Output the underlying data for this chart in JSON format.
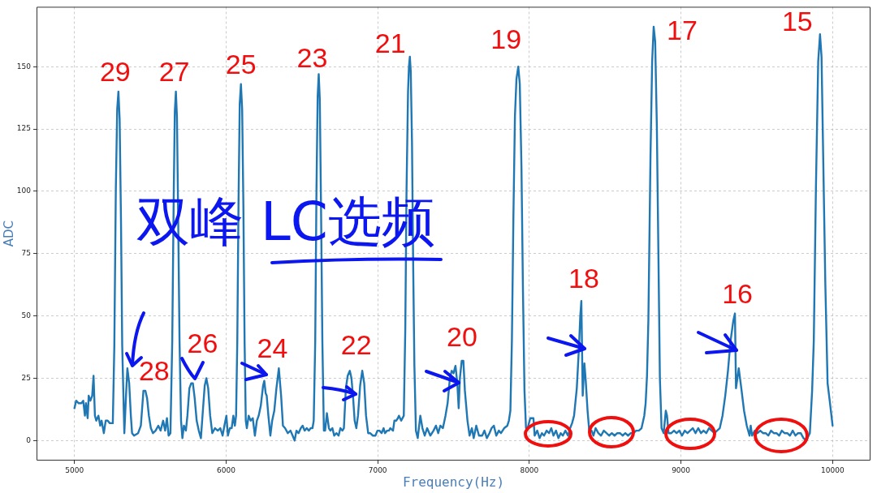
{
  "chart_data": {
    "type": "line",
    "xlabel": "Frequency(Hz)",
    "ylabel": "ADC",
    "color": "#1f77b4",
    "marker": "none",
    "grid": true,
    "xlim": [
      4750,
      10250
    ],
    "xticks": [
      5000,
      6000,
      7000,
      8000,
      9000,
      10000
    ],
    "ylim": [
      -8,
      174
    ],
    "yticks": [
      0,
      25,
      50,
      75,
      100,
      125,
      150
    ],
    "x": [
      5000,
      5011,
      5028,
      5046,
      5058,
      5069,
      5076,
      5087,
      5094,
      5105,
      5117,
      5126,
      5135,
      5144,
      5158,
      5170,
      5179,
      5194,
      5206,
      5219,
      5233,
      5247,
      5253,
      5263,
      5273,
      5282,
      5290,
      5298,
      5307,
      5315,
      5329,
      5340,
      5349,
      5361,
      5372,
      5380,
      5393,
      5420,
      5438,
      5455,
      5468,
      5479,
      5491,
      5504,
      5518,
      5535,
      5553,
      5568,
      5585,
      5598,
      5610,
      5621,
      5633,
      5645,
      5655,
      5662,
      5669,
      5676,
      5684,
      5693,
      5703,
      5712,
      5722,
      5735,
      5745,
      5758,
      5770,
      5781,
      5793,
      5806,
      5820,
      5834,
      5847,
      5859,
      5870,
      5882,
      5895,
      5909,
      5927,
      5945,
      5962,
      5977,
      5989,
      6002,
      6012,
      6025,
      6037,
      6048,
      6058,
      6066,
      6074,
      6082,
      6090,
      6098,
      6106,
      6114,
      6122,
      6130,
      6137,
      6149,
      6162,
      6176,
      6190,
      6203,
      6215,
      6229,
      6244,
      6252,
      6261,
      6268,
      6279,
      6292,
      6304,
      6318,
      6332,
      6348,
      6363,
      6375,
      6389,
      6407,
      6425,
      6439,
      6452,
      6464,
      6478,
      6493,
      6505,
      6518,
      6532,
      6546,
      6558,
      6570,
      6578,
      6588,
      6596,
      6604,
      6611,
      6618,
      6626,
      6635,
      6645,
      6653,
      6665,
      6678,
      6688,
      6701,
      6713,
      6727,
      6742,
      6754,
      6767,
      6777,
      6790,
      6802,
      6816,
      6827,
      6838,
      6848,
      6859,
      6870,
      6884,
      6898,
      6911,
      6923,
      6937,
      6950,
      6968,
      6985,
      6998,
      7012,
      7026,
      7039,
      7048,
      7062,
      7074,
      7083,
      7101,
      7110,
      7122,
      7133,
      7140,
      7155,
      7172,
      7182,
      7190,
      7200,
      7206,
      7212,
      7218,
      7226,
      7234,
      7242,
      7252,
      7264,
      7281,
      7295,
      7310,
      7326,
      7347,
      7368,
      7384,
      7399,
      7413,
      7430,
      7447,
      7461,
      7476,
      7488,
      7500,
      7513,
      7525,
      7534,
      7542,
      7554,
      7565,
      7575,
      7592,
      7606,
      7621,
      7633,
      7650,
      7668,
      7689,
      7704,
      7720,
      7737,
      7751,
      7766,
      7782,
      7799,
      7813,
      7834,
      7855,
      7865,
      7875,
      7885,
      7895,
      7905,
      7915,
      7927,
      7937,
      7948,
      7958,
      7968,
      7978,
      7989,
      8006,
      8027,
      8035,
      8052,
      8068,
      8083,
      8097,
      8114,
      8130,
      8145,
      8159,
      8176,
      8192,
      8207,
      8221,
      8238,
      8255,
      8269,
      8282,
      8295,
      8313,
      8327,
      8336,
      8343,
      8352,
      8363,
      8372,
      8384,
      8395,
      8411,
      8423,
      8437,
      8455,
      8473,
      8491,
      8509,
      8526,
      8544,
      8562,
      8580,
      8598,
      8615,
      8633,
      8651,
      8669,
      8687,
      8704,
      8722,
      8740,
      8758,
      8767,
      8776,
      8785,
      8799,
      8810,
      8820,
      8830,
      8841,
      8851,
      8861,
      8872,
      8886,
      8900,
      8908,
      8918,
      8936,
      8954,
      8971,
      8989,
      9007,
      9025,
      9043,
      9060,
      9078,
      9096,
      9114,
      9132,
      9149,
      9167,
      9185,
      9203,
      9221,
      9238,
      9256,
      9274,
      9292,
      9310,
      9327,
      9345,
      9356,
      9363,
      9381,
      9398,
      9416,
      9434,
      9452,
      9460,
      9469,
      9487,
      9505,
      9523,
      9541,
      9559,
      9576,
      9594,
      9612,
      9630,
      9648,
      9665,
      9683,
      9701,
      9719,
      9737,
      9755,
      9772,
      9790,
      9808,
      9826,
      9850,
      9865,
      9876,
      9890,
      9905,
      9917,
      9927,
      9938,
      9952,
      9967,
      9983,
      10000
    ],
    "values": [
      13,
      16,
      15,
      15,
      16,
      10,
      15,
      9,
      18,
      16,
      18,
      26,
      10,
      8,
      10,
      6,
      8,
      3,
      8,
      8,
      7,
      7,
      7,
      38,
      101,
      133,
      140,
      129,
      88,
      38,
      3,
      18,
      29,
      23,
      10,
      3,
      2,
      3,
      6,
      20,
      20,
      17,
      10,
      5,
      3,
      4,
      6,
      4,
      8,
      4,
      9,
      2,
      3,
      40,
      100,
      132,
      140,
      130,
      90,
      40,
      8,
      1,
      6,
      4,
      10,
      21,
      23,
      23,
      17,
      8,
      4,
      1,
      12,
      22,
      25,
      21,
      10,
      3,
      5,
      4,
      5,
      2,
      6,
      10,
      2,
      5,
      5,
      10,
      6,
      10,
      40,
      95,
      135,
      143,
      133,
      95,
      40,
      8,
      5,
      10,
      8,
      9,
      2,
      8,
      10,
      14,
      22,
      24,
      19,
      18,
      10,
      2,
      8,
      12,
      21,
      29,
      18,
      6,
      5,
      3,
      4,
      2,
      0,
      4,
      3,
      5,
      6,
      4,
      5,
      4,
      5,
      5,
      8,
      40,
      100,
      138,
      147,
      137,
      95,
      40,
      4,
      4,
      11,
      5,
      4,
      5,
      2,
      3,
      2,
      5,
      4,
      5,
      21,
      26,
      28,
      25,
      17,
      8,
      5,
      10,
      22,
      28,
      23,
      10,
      3,
      3,
      2,
      2,
      4,
      4,
      3,
      5,
      3,
      4,
      4,
      5,
      4,
      8,
      8,
      9,
      10,
      8,
      10,
      45,
      100,
      140,
      150,
      154,
      148,
      120,
      70,
      30,
      4,
      1,
      10,
      5,
      2,
      5,
      2,
      4,
      6,
      3,
      6,
      5,
      10,
      15,
      25,
      28,
      27,
      30,
      23,
      13,
      25,
      32,
      32,
      20,
      8,
      2,
      5,
      1,
      6,
      2,
      2,
      4,
      1,
      3,
      5,
      6,
      2,
      4,
      3,
      5,
      6,
      8,
      12,
      40,
      90,
      130,
      145,
      150,
      143,
      110,
      60,
      20,
      5,
      5,
      9,
      9,
      2,
      4,
      1,
      3,
      2,
      4,
      3,
      5,
      2,
      4,
      1,
      3,
      2,
      4,
      2,
      5,
      7,
      10,
      21,
      37,
      50,
      56,
      18,
      31,
      24,
      12,
      4,
      4,
      2,
      5,
      3,
      2,
      4,
      3,
      2,
      3,
      2,
      3,
      3,
      2,
      3,
      2,
      3,
      3,
      4,
      4,
      5,
      10,
      15,
      26,
      48,
      114,
      152,
      166,
      160,
      126,
      76,
      25,
      5,
      3,
      12,
      10,
      3,
      3,
      4,
      3,
      4,
      2,
      4,
      3,
      4,
      5,
      3,
      5,
      3,
      4,
      3,
      5,
      4,
      3,
      4,
      5,
      10,
      18,
      28,
      40,
      48,
      51,
      21,
      29,
      21,
      12,
      6,
      2,
      6,
      2,
      4,
      3,
      4,
      3,
      3,
      2,
      4,
      3,
      3,
      2,
      4,
      3,
      3,
      2,
      4,
      2,
      3,
      3,
      1,
      0,
      3,
      20,
      40,
      101,
      152,
      163,
      154,
      114,
      63,
      23,
      15,
      6
    ],
    "annotations": [
      {
        "text": "29",
        "x": 5290,
        "y": 140
      },
      {
        "text": "27",
        "x": 5669,
        "y": 140
      },
      {
        "text": "25",
        "x": 6098,
        "y": 143
      },
      {
        "text": "23",
        "x": 6611,
        "y": 147
      },
      {
        "text": "21",
        "x": 7212,
        "y": 154
      },
      {
        "text": "19",
        "x": 7927,
        "y": 150
      },
      {
        "text": "17",
        "x": 8820,
        "y": 166
      },
      {
        "text": "15",
        "x": 9917,
        "y": 163
      },
      {
        "text": "28",
        "x": 5349,
        "y": 29
      },
      {
        "text": "26",
        "x": 5770,
        "y": 23
      },
      {
        "text": "24",
        "x": 6252,
        "y": 24
      },
      {
        "text": "22",
        "x": 6816,
        "y": 28
      },
      {
        "text": "20",
        "x": 7513,
        "y": 30
      },
      {
        "text": "18",
        "x": 8343,
        "y": 56
      },
      {
        "text": "16",
        "x": 9356,
        "y": 51
      },
      "双峰 LC选频"
    ]
  }
}
